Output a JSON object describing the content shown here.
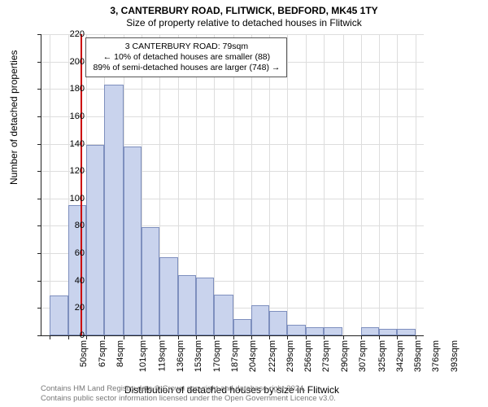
{
  "header": {
    "title": "3, CANTERBURY ROAD, FLITWICK, BEDFORD, MK45 1TY",
    "subtitle": "Size of property relative to detached houses in Flitwick"
  },
  "chart": {
    "type": "histogram",
    "ylabel": "Number of detached properties",
    "xlabel": "Distribution of detached houses by size in Flitwick",
    "ylim": [
      0,
      220
    ],
    "ytick_step": 20,
    "yticks": [
      0,
      20,
      40,
      60,
      80,
      100,
      120,
      140,
      160,
      180,
      200,
      220
    ],
    "xlim": [
      42,
      401
    ],
    "xtick_step": 17,
    "xticks": [
      50,
      67,
      84,
      101,
      119,
      136,
      153,
      170,
      187,
      204,
      222,
      239,
      256,
      273,
      290,
      307,
      325,
      342,
      359,
      376,
      393
    ],
    "xtick_suffix": "sqm",
    "bin_width": 17,
    "bars": [
      {
        "x0": 50,
        "x1": 67,
        "v": 29
      },
      {
        "x0": 67,
        "x1": 84,
        "v": 95
      },
      {
        "x0": 84,
        "x1": 101,
        "v": 139
      },
      {
        "x0": 101,
        "x1": 119,
        "v": 183
      },
      {
        "x0": 119,
        "x1": 136,
        "v": 138
      },
      {
        "x0": 136,
        "x1": 153,
        "v": 79
      },
      {
        "x0": 153,
        "x1": 170,
        "v": 57
      },
      {
        "x0": 170,
        "x1": 187,
        "v": 44
      },
      {
        "x0": 187,
        "x1": 204,
        "v": 42
      },
      {
        "x0": 204,
        "x1": 222,
        "v": 30
      },
      {
        "x0": 222,
        "x1": 239,
        "v": 12
      },
      {
        "x0": 239,
        "x1": 256,
        "v": 22
      },
      {
        "x0": 256,
        "x1": 273,
        "v": 18
      },
      {
        "x0": 273,
        "x1": 290,
        "v": 8
      },
      {
        "x0": 290,
        "x1": 307,
        "v": 6
      },
      {
        "x0": 307,
        "x1": 325,
        "v": 6
      },
      {
        "x0": 325,
        "x1": 342,
        "v": 0
      },
      {
        "x0": 342,
        "x1": 359,
        "v": 6
      },
      {
        "x0": 359,
        "x1": 376,
        "v": 5
      },
      {
        "x0": 376,
        "x1": 393,
        "v": 5
      }
    ],
    "marker": {
      "x": 79,
      "color": "#cc0000"
    },
    "bar_fill": "#c9d3ed",
    "bar_stroke": "#7e8fbe",
    "grid_color": "#dddddd",
    "annotation": {
      "lines": [
        "3 CANTERBURY ROAD: 79sqm",
        "← 10% of detached houses are smaller (88)",
        "89% of semi-detached houses are larger (748) →"
      ],
      "x_anchor_data": 79
    }
  },
  "footer": {
    "line1": "Contains HM Land Registry data © Crown copyright and database right 2024.",
    "line2": "Contains public sector information licensed under the Open Government Licence v3.0."
  }
}
